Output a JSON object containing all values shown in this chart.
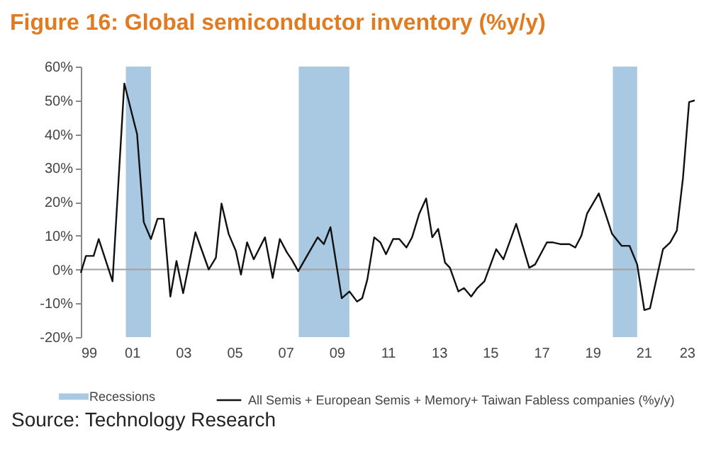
{
  "chart_data": {
    "type": "line",
    "title": "Figure 16: Global semiconductor inventory (%y/y)",
    "annotations": [
      "Source: Technology Research"
    ],
    "series": [
      {
        "name": "All Semis + European Semis + Memory+ Taiwan Fabless companies (%y/y)",
        "color": "#111111",
        "x": [
          1999.0,
          1999.2,
          1999.5,
          1999.7,
          2000.24,
          2000.7,
          2001.2,
          2001.46,
          2001.74,
          2002.0,
          2002.24,
          2002.5,
          2002.74,
          2003.0,
          2003.48,
          2004.0,
          2004.28,
          2004.5,
          2004.78,
          2005.06,
          2005.26,
          2005.5,
          2005.76,
          2006.2,
          2006.5,
          2006.78,
          2007.06,
          2007.24,
          2007.5,
          2008.26,
          2008.5,
          2008.76,
          2009.2,
          2009.5,
          2009.8,
          2010.0,
          2010.2,
          2010.47,
          2010.71,
          2010.93,
          2011.21,
          2011.45,
          2011.73,
          2011.95,
          2012.23,
          2012.5,
          2012.74,
          2012.97,
          2013.24,
          2013.43,
          2013.76,
          2013.98,
          2014.26,
          2014.5,
          2014.78,
          2015.24,
          2015.52,
          2016.02,
          2016.53,
          2016.76,
          2017.22,
          2017.46,
          2017.74,
          2018.1,
          2018.33,
          2018.57,
          2018.79,
          2019.25,
          2019.77,
          2020.14,
          2020.45,
          2020.75,
          2021.03,
          2021.25,
          2021.76,
          2022.04,
          2022.3,
          2022.54,
          2022.78,
          2023.0
        ],
        "values": [
          -1,
          4,
          4,
          9,
          -3.5,
          55,
          40,
          14,
          9,
          15,
          15,
          -8,
          2.5,
          -7,
          11,
          0,
          3.5,
          19.5,
          10.5,
          5.5,
          -1.5,
          8,
          3,
          9.5,
          -2.5,
          9,
          5,
          3,
          -0.5,
          9.5,
          7.5,
          12.5,
          -8.5,
          -6.5,
          -9.5,
          -8.5,
          -3,
          9.5,
          8,
          4.5,
          9,
          9,
          6.5,
          9.5,
          16.5,
          21,
          9.5,
          12,
          2,
          0.5,
          -6.5,
          -5.5,
          -8,
          -5.5,
          -3.5,
          6,
          3,
          13.5,
          0.5,
          1.5,
          8,
          8,
          7.5,
          7.5,
          6.5,
          10,
          16.5,
          22.5,
          10.5,
          7,
          7,
          1.5,
          -12,
          -11.5,
          6,
          8,
          11.5,
          27,
          49.5,
          50
        ]
      }
    ],
    "xlim": [
      1999,
      2023
    ],
    "xticks": [
      {
        "value": 1999,
        "label": "99"
      },
      {
        "value": 2001,
        "label": "01"
      },
      {
        "value": 2003,
        "label": "03"
      },
      {
        "value": 2005,
        "label": "05"
      },
      {
        "value": 2007,
        "label": "07"
      },
      {
        "value": 2009,
        "label": "09"
      },
      {
        "value": 2011,
        "label": "11"
      },
      {
        "value": 2013,
        "label": "13"
      },
      {
        "value": 2015,
        "label": "15"
      },
      {
        "value": 2017,
        "label": "17"
      },
      {
        "value": 2019,
        "label": "19"
      },
      {
        "value": 2021,
        "label": "21"
      },
      {
        "value": 2023,
        "label": "23"
      }
    ],
    "ylim": [
      -20,
      60
    ],
    "yticks": [
      {
        "value": -20,
        "label": "-20%"
      },
      {
        "value": -10,
        "label": "-10%"
      },
      {
        "value": 0,
        "label": "0%"
      },
      {
        "value": 10,
        "label": "10%"
      },
      {
        "value": 20,
        "label": "20%"
      },
      {
        "value": 30,
        "label": "30%"
      },
      {
        "value": 40,
        "label": "40%"
      },
      {
        "value": 50,
        "label": "50%"
      },
      {
        "value": 60,
        "label": "60%"
      }
    ],
    "bands": [
      {
        "axis": "x",
        "from": 2000.76,
        "to": 2001.74,
        "label": "Recessions",
        "color": "#a9c8e2"
      },
      {
        "axis": "x",
        "from": 2007.52,
        "to": 2009.5,
        "color": "#a9c8e2"
      },
      {
        "axis": "x",
        "from": 2019.8,
        "to": 2020.75,
        "color": "#a9c8e2"
      }
    ],
    "ref_lines": [
      {
        "axis": "y",
        "value": 0,
        "color": "#a0a0a0"
      }
    ],
    "grid": false,
    "legend": "bottom",
    "marker": "none",
    "line_style": "solid"
  }
}
